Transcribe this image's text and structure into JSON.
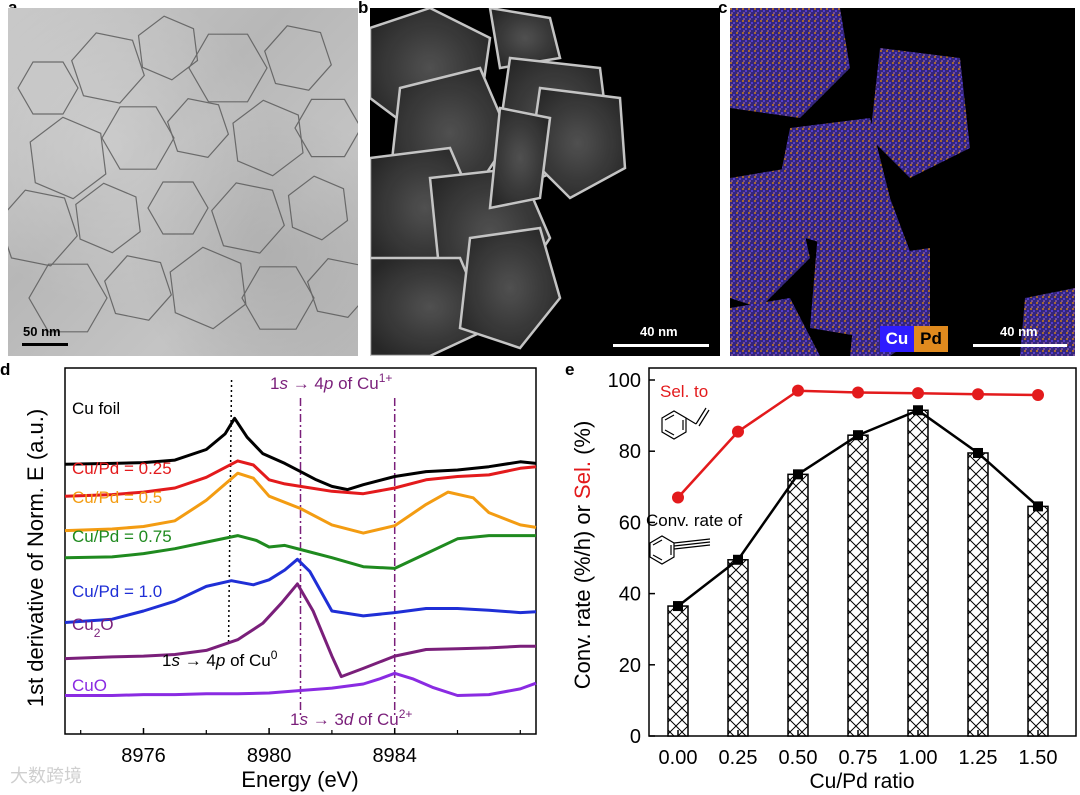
{
  "panels": {
    "a": {
      "letter": "a",
      "scale_label": "50 nm"
    },
    "b": {
      "letter": "b",
      "scale_label": "40 nm"
    },
    "c": {
      "letter": "c",
      "scale_label": "40 nm",
      "legend_cu": "Cu",
      "legend_pd": "Pd"
    },
    "d": {
      "letter": "d"
    },
    "e": {
      "letter": "e"
    }
  },
  "watermark": "大数跨境",
  "colors": {
    "cu_map": "#3b2cff",
    "pd_map": "#e08a1e",
    "black": "#000000",
    "red": "#e31a1c",
    "orange": "#f39c12",
    "green": "#1f8a1f",
    "blue": "#1f2fd6",
    "purple": "#7a1f7a",
    "violet": "#8a2be2"
  },
  "chart_data": [
    {
      "type": "line",
      "panel": "d",
      "ylabel": "1st derivative of Norm. E (a.u.)",
      "xlabel": "Energy (eV)",
      "xlim": [
        8973.5,
        8988.5
      ],
      "x_ticks": [
        "8976",
        "8980",
        "8984"
      ],
      "x_tick_values": [
        8976,
        8980,
        8984
      ],
      "annotations": {
        "cu1": [
          "1",
          "s",
          " → 4",
          "p",
          " of Cu",
          "1+"
        ],
        "cu0": [
          "1",
          "s",
          " → 4",
          "p",
          " of Cu",
          "0"
        ],
        "cu2": [
          "1",
          "s",
          " → 3",
          "d",
          " of Cu",
          "2+"
        ]
      },
      "ref_lines_x": [
        8978.9,
        8981.0,
        8984.0
      ],
      "series": [
        {
          "name": "Cu foil",
          "color": "#000000",
          "label_parts": [
            "Cu foil"
          ],
          "x": [
            8973.5,
            8975,
            8976,
            8977,
            8978,
            8978.6,
            8978.9,
            8979.3,
            8979.8,
            8980.5,
            8981,
            8981.5,
            8982,
            8982.5,
            8983,
            8984,
            8985,
            8986,
            8987,
            8988,
            8988.5
          ],
          "y": [
            0.29,
            0.3,
            0.31,
            0.34,
            0.47,
            0.66,
            0.85,
            0.62,
            0.42,
            0.3,
            0.2,
            0.1,
            0.02,
            -0.02,
            0.04,
            0.14,
            0.2,
            0.22,
            0.26,
            0.32,
            0.3
          ]
        },
        {
          "name": "Cu/Pd = 0.25",
          "color": "#e31a1c",
          "label_parts": [
            "Cu/Pd = 0.25"
          ],
          "x": [
            8973.5,
            8975,
            8976,
            8977,
            8978,
            8979,
            8979.5,
            8980,
            8980.5,
            8981,
            8982,
            8983,
            8984,
            8985,
            8986,
            8987,
            8988,
            8988.5
          ],
          "y": [
            -0.1,
            -0.08,
            -0.05,
            0.0,
            0.13,
            0.33,
            0.28,
            0.1,
            0.05,
            0.02,
            -0.04,
            -0.07,
            0.0,
            0.1,
            0.14,
            0.16,
            0.24,
            0.26
          ]
        },
        {
          "name": "Cu/Pd = 0.5",
          "color": "#f39c12",
          "label_parts": [
            "Cu/Pd = 0.5"
          ],
          "x": [
            8973.5,
            8975,
            8976,
            8977,
            8978,
            8979,
            8979.5,
            8980,
            8981,
            8982,
            8983,
            8984,
            8985,
            8985.7,
            8986.5,
            8987,
            8988,
            8988.5
          ],
          "y": [
            -0.52,
            -0.5,
            -0.47,
            -0.4,
            -0.15,
            0.18,
            0.12,
            -0.1,
            -0.25,
            -0.45,
            -0.55,
            -0.46,
            -0.2,
            -0.05,
            -0.12,
            -0.3,
            -0.45,
            -0.48
          ]
        },
        {
          "name": "Cu/Pd = 0.75",
          "color": "#1f8a1f",
          "label_parts": [
            "Cu/Pd = 0.75"
          ],
          "x": [
            8973.5,
            8975,
            8976,
            8977,
            8978,
            8979,
            8979.6,
            8980,
            8980.5,
            8981,
            8982,
            8983,
            8984,
            8985,
            8986,
            8987,
            8988,
            8988.5
          ],
          "y": [
            -0.85,
            -0.84,
            -0.8,
            -0.74,
            -0.66,
            -0.58,
            -0.64,
            -0.72,
            -0.7,
            -0.75,
            -0.85,
            -0.96,
            -0.98,
            -0.8,
            -0.62,
            -0.58,
            -0.58,
            -0.58
          ]
        },
        {
          "name": "Cu/Pd = 1.0",
          "color": "#1f2fd6",
          "label_parts": [
            "Cu/Pd = 1.0"
          ],
          "x": [
            8973.5,
            8975,
            8976,
            8977,
            8978,
            8978.8,
            8979.5,
            8980,
            8980.5,
            8980.9,
            8981.3,
            8982,
            8983,
            8984,
            8985,
            8986,
            8987,
            8988,
            8988.5
          ],
          "y": [
            -1.64,
            -1.6,
            -1.5,
            -1.38,
            -1.2,
            -1.13,
            -1.18,
            -1.12,
            -1.0,
            -0.87,
            -1.02,
            -1.5,
            -1.56,
            -1.52,
            -1.47,
            -1.47,
            -1.49,
            -1.52,
            -1.51
          ]
        },
        {
          "name": "Cu2O",
          "color": "#7a1f7a",
          "label_parts": [
            "Cu",
            "2",
            "O"
          ],
          "x": [
            8973.5,
            8975,
            8976,
            8977,
            8978,
            8979,
            8979.8,
            8980.4,
            8980.9,
            8981.4,
            8982,
            8982.3,
            8983,
            8984,
            8985,
            8986,
            8987,
            8988,
            8988.5
          ],
          "y": [
            -2.08,
            -2.06,
            -2.05,
            -2.03,
            -1.98,
            -1.85,
            -1.65,
            -1.4,
            -1.17,
            -1.5,
            -2.05,
            -2.3,
            -2.2,
            -2.05,
            -1.97,
            -1.96,
            -1.95,
            -1.93,
            -1.93
          ]
        },
        {
          "name": "CuO",
          "color": "#8a2be2",
          "label_parts": [
            "CuO"
          ],
          "x": [
            8973.5,
            8975,
            8976,
            8977,
            8978,
            8979,
            8980,
            8981,
            8982,
            8983,
            8983.5,
            8984,
            8984.6,
            8985.2,
            8986,
            8987,
            8988,
            8988.5
          ],
          "y": [
            -2.53,
            -2.53,
            -2.52,
            -2.52,
            -2.51,
            -2.51,
            -2.5,
            -2.47,
            -2.44,
            -2.39,
            -2.33,
            -2.26,
            -2.33,
            -2.43,
            -2.53,
            -2.52,
            -2.45,
            -2.38
          ]
        }
      ]
    },
    {
      "type": "bar",
      "panel": "e",
      "xlabel": "Cu/Pd ratio",
      "ylabel_parts": [
        "Conv. rate (%/h) or ",
        "Sel.",
        " (%)"
      ],
      "ylim": [
        0,
        100
      ],
      "y_ticks": [
        "0",
        "20",
        "40",
        "60",
        "80",
        "100"
      ],
      "y_tick_values": [
        0,
        20,
        40,
        60,
        80,
        100
      ],
      "categories": [
        "0.00",
        "0.25",
        "0.50",
        "0.75",
        "1.00",
        "1.25",
        "1.50"
      ],
      "series": [
        {
          "name": "Conv. rate of",
          "kind": "bar+line",
          "color": "#000000",
          "values": [
            36.5,
            49.5,
            73.5,
            84.5,
            91.5,
            79.5,
            64.5
          ]
        },
        {
          "name": "Sel. to",
          "kind": "line",
          "color": "#e31a1c",
          "values": [
            67,
            85.5,
            97,
            96.5,
            96.3,
            96,
            95.8
          ]
        }
      ]
    }
  ]
}
